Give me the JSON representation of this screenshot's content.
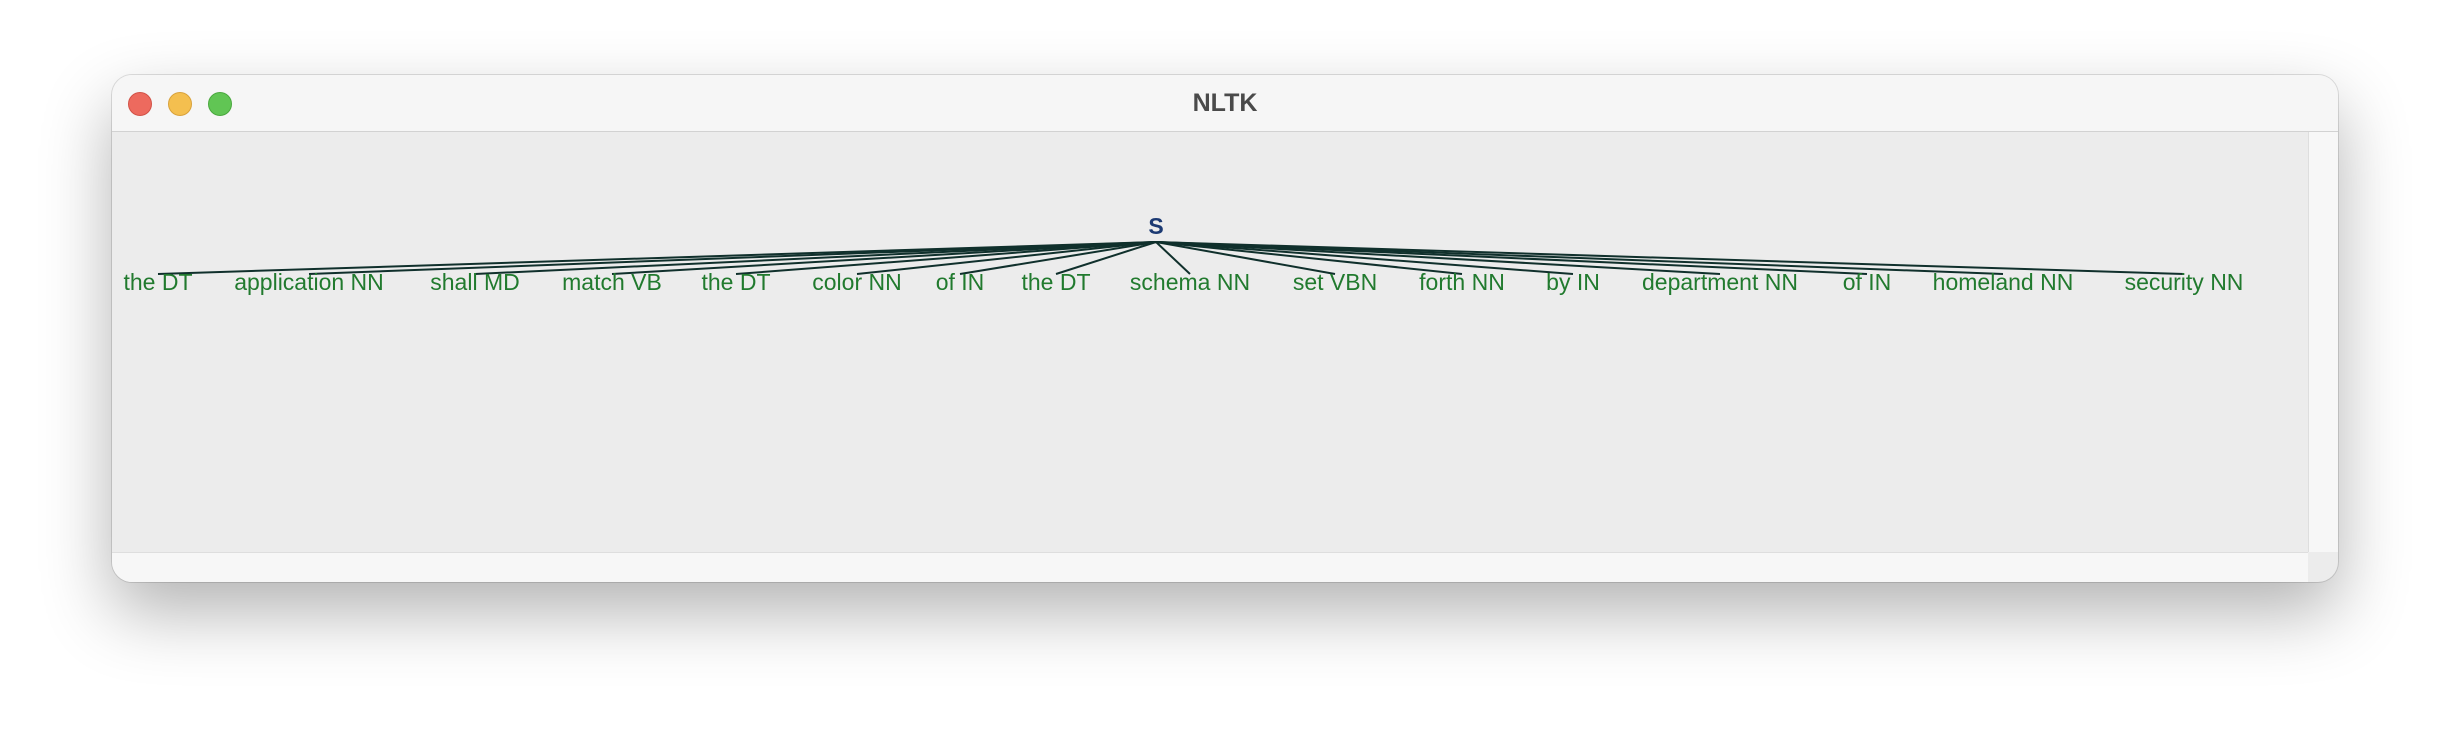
{
  "window": {
    "title": "NLTK"
  },
  "tree": {
    "root": "S",
    "leaves": [
      "the DT",
      "application NN",
      "shall MD",
      "match VB",
      "the DT",
      "color NN",
      "of IN",
      "the DT",
      "schema NN",
      "set VBN",
      "forth NN",
      "by IN",
      "department NN",
      "of IN",
      "homeland NN",
      "security NN"
    ]
  },
  "colors": {
    "root_text": "#1c3a73",
    "leaf_text": "#217a2e",
    "branch_line": "#10302c"
  }
}
